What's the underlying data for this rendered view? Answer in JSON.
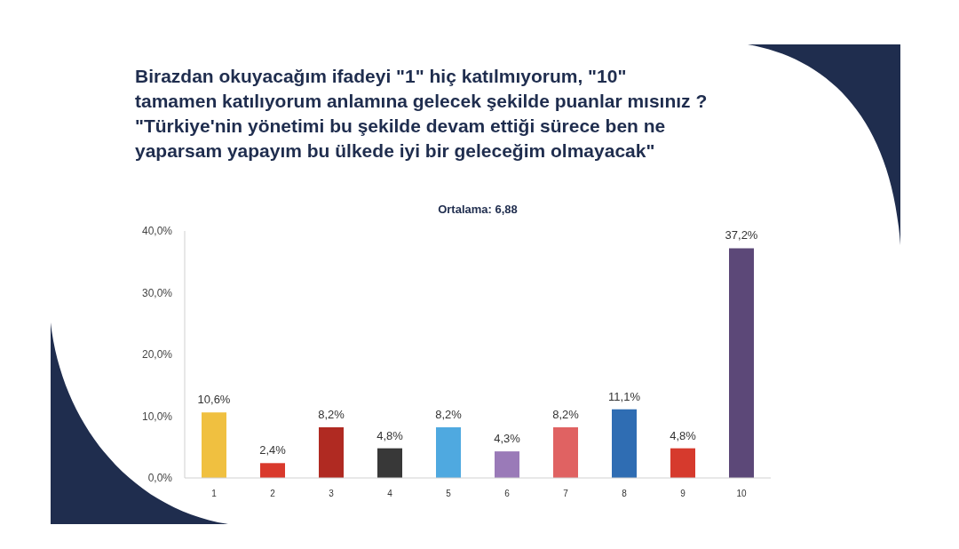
{
  "chart_data": {
    "type": "bar",
    "title": "Birazdan okuyacağım ifadeyi \"1\" hiç katılmıyorum, \"10\" tamamen katılıyorum anlamına gelecek şekilde puanlar mısınız ?",
    "subtitle": "\"Türkiye'nin yönetimi bu şekilde devam ettiği sürece ben ne yaparsam yapayım bu ülkede iyi bir geleceğim olmayacak\"",
    "annotations": [
      "Ortalama: 6,88"
    ],
    "categories": [
      "1",
      "2",
      "3",
      "4",
      "5",
      "6",
      "7",
      "8",
      "9",
      "10"
    ],
    "values": [
      10.6,
      2.4,
      8.2,
      4.8,
      8.2,
      4.3,
      8.2,
      11.1,
      4.8,
      37.2
    ],
    "colors": [
      "#f0c040",
      "#d9392c",
      "#b02a22",
      "#383838",
      "#4fa9e0",
      "#9a7ab8",
      "#e06262",
      "#2f6db3",
      "#d63a2d",
      "#5c4878"
    ],
    "value_labels": [
      "10,6%",
      "2,4%",
      "8,2%",
      "4,8%",
      "8,2%",
      "4,3%",
      "8,2%",
      "11,1%",
      "4,8%",
      "37,2%"
    ],
    "ylim": [
      0,
      40
    ],
    "yticks": [
      {
        "value": 0,
        "label": "0,0%"
      },
      {
        "value": 10,
        "label": "10,0%"
      },
      {
        "value": 20,
        "label": "20,0%"
      },
      {
        "value": 30,
        "label": "30,0%"
      },
      {
        "value": 40,
        "label": "40,0%"
      }
    ]
  }
}
